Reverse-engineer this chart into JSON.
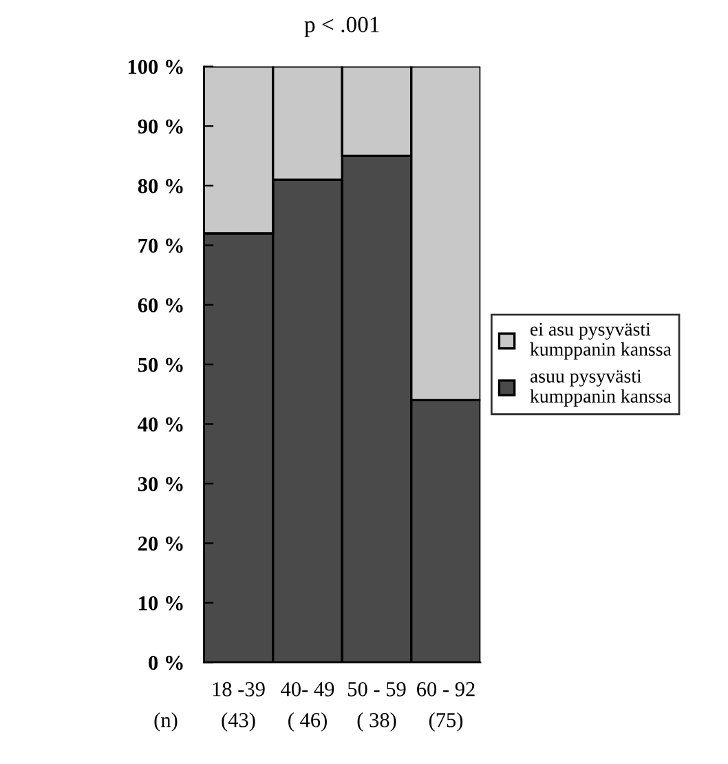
{
  "chart_data": {
    "type": "bar",
    "title": "p < .001",
    "stacked": true,
    "categories": [
      "18 -39",
      "40- 49",
      "50 - 59",
      "60 - 92"
    ],
    "series": [
      {
        "name": "asuu pysyvästi kumppanin kanssa",
        "color": "#4a4a4a",
        "values": [
          72,
          81,
          85,
          44
        ]
      },
      {
        "name": "ei asu pysyvästi kumppanin kanssa",
        "color": "#c8c8c8",
        "values": [
          28,
          19,
          15,
          56
        ]
      }
    ],
    "ylim": [
      0,
      100
    ],
    "yticks": [
      {
        "value": 0,
        "label": "0 %"
      },
      {
        "value": 10,
        "label": "10 %"
      },
      {
        "value": 20,
        "label": "20 %"
      },
      {
        "value": 30,
        "label": "30 %"
      },
      {
        "value": 40,
        "label": "40 %"
      },
      {
        "value": 50,
        "label": "50 %"
      },
      {
        "value": 60,
        "label": "60 %"
      },
      {
        "value": 70,
        "label": "70 %"
      },
      {
        "value": 80,
        "label": "80 %"
      },
      {
        "value": 90,
        "label": "90 %"
      },
      {
        "value": 100,
        "label": "100 %"
      }
    ],
    "grid": false,
    "legend": "right",
    "annotations": [
      "(n)",
      "(43)",
      "( 46)",
      "( 38)",
      "(75)"
    ]
  }
}
